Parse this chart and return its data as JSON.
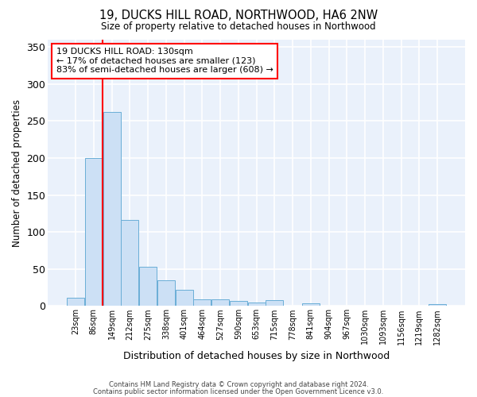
{
  "title": "19, DUCKS HILL ROAD, NORTHWOOD, HA6 2NW",
  "subtitle": "Size of property relative to detached houses in Northwood",
  "xlabel": "Distribution of detached houses by size in Northwood",
  "ylabel": "Number of detached properties",
  "bar_color": "#cce0f5",
  "bar_edge_color": "#6aaed6",
  "background_color": "#eaf1fb",
  "grid_color": "#ffffff",
  "fig_background": "#ffffff",
  "categories": [
    "23sqm",
    "86sqm",
    "149sqm",
    "212sqm",
    "275sqm",
    "338sqm",
    "401sqm",
    "464sqm",
    "527sqm",
    "590sqm",
    "653sqm",
    "715sqm",
    "778sqm",
    "841sqm",
    "904sqm",
    "967sqm",
    "1030sqm",
    "1093sqm",
    "1156sqm",
    "1219sqm",
    "1282sqm"
  ],
  "values": [
    11,
    200,
    262,
    116,
    53,
    35,
    22,
    9,
    9,
    7,
    5,
    8,
    0,
    4,
    0,
    0,
    0,
    0,
    0,
    0,
    3
  ],
  "ylim": [
    0,
    360
  ],
  "yticks": [
    0,
    50,
    100,
    150,
    200,
    250,
    300,
    350
  ],
  "property_label": "19 DUCKS HILL ROAD: 130sqm",
  "annotation_line1": "← 17% of detached houses are smaller (123)",
  "annotation_line2": "83% of semi-detached houses are larger (608) →",
  "vline_x_index": 1.5,
  "footer_line1": "Contains HM Land Registry data © Crown copyright and database right 2024.",
  "footer_line2": "Contains public sector information licensed under the Open Government Licence v3.0."
}
